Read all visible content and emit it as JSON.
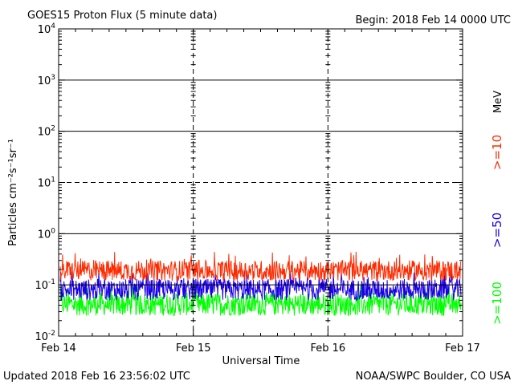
{
  "header": {
    "title": "GOES15 Proton Flux (5 minute data)",
    "begin": "Begin: 2018 Feb 14 0000 UTC"
  },
  "footer": {
    "updated": "Updated 2018 Feb 16 23:56:02 UTC",
    "credit": "NOAA/SWPC Boulder, CO USA"
  },
  "chart_data": {
    "type": "line",
    "title": "GOES15 Proton Flux (5 minute data)",
    "xlabel": "Universal Time",
    "ylabel": "Particles cm⁻²s⁻¹sr⁻¹",
    "y_scale": "log",
    "ylim": [
      0.01,
      10000
    ],
    "xlim": [
      "2018-02-14",
      "2018-02-17"
    ],
    "x_ticks": [
      "Feb 14",
      "Feb 15",
      "Feb 16",
      "Feb 17"
    ],
    "y_ticks": [
      {
        "base": "10",
        "exp": "-2",
        "value": 0.01
      },
      {
        "base": "10",
        "exp": "-1",
        "value": 0.1
      },
      {
        "base": "10",
        "exp": "0",
        "value": 1
      },
      {
        "base": "10",
        "exp": "1",
        "value": 10
      },
      {
        "base": "10",
        "exp": "2",
        "value": 100
      },
      {
        "base": "10",
        "exp": "3",
        "value": 1000
      },
      {
        "base": "10",
        "exp": "4",
        "value": 10000
      }
    ],
    "thresholds": [
      {
        "value": 1000,
        "style": "solid"
      },
      {
        "value": 100,
        "style": "solid"
      },
      {
        "value": 10,
        "style": "dashed"
      },
      {
        "value": 1,
        "style": "solid"
      },
      {
        "value": 0.1,
        "style": "solid"
      }
    ],
    "grid": "vertical dashed at day boundaries",
    "legend": {
      "placement": "right",
      "unit": "MeV",
      "entries": [
        {
          "label": ">=10",
          "color": "#ff2a00"
        },
        {
          "label": ">=50",
          "color": "#1a00e6"
        },
        {
          "label": ">=100",
          "color": "#00ff00"
        }
      ]
    },
    "series": [
      {
        "name": ">=10",
        "color": "#ff2a00",
        "typical_range": [
          0.12,
          0.3
        ],
        "peak": 0.45
      },
      {
        "name": ">=50",
        "color": "#1a00e6",
        "typical_range": [
          0.05,
          0.13
        ],
        "peak": 0.2
      },
      {
        "name": ">=100",
        "color": "#00ff00",
        "typical_range": [
          0.025,
          0.07
        ],
        "peak": 0.1
      }
    ]
  }
}
